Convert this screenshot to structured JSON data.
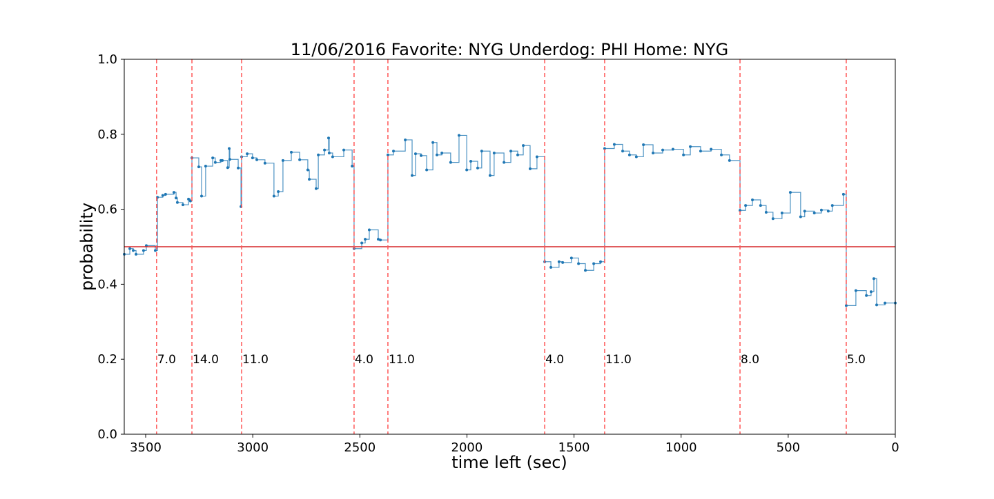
{
  "chart_data": {
    "type": "step",
    "title": "11/06/2016 Favorite: NYG Underdog: PHI Home: NYG",
    "xlabel": "time left (sec)",
    "ylabel": "probability",
    "xlim": [
      3600,
      0
    ],
    "ylim": [
      0,
      1
    ],
    "xticks": [
      3500,
      3000,
      2500,
      2000,
      1500,
      1000,
      500,
      0
    ],
    "yticks": [
      {
        "value": 0,
        "label": "0.0"
      },
      0.2,
      0.4,
      0.6,
      0.8,
      {
        "value": 1,
        "label": "1.0"
      }
    ],
    "hline": {
      "value": 0.5,
      "color": "#d62728"
    },
    "vlines": {
      "color": "#ff5555",
      "lines": [
        {
          "x": 3449,
          "text": "7.0"
        },
        {
          "x": 3284,
          "text": "14.0"
        },
        {
          "x": 3052,
          "text": "11.0"
        },
        {
          "x": 2527,
          "text": "4.0"
        },
        {
          "x": 2369,
          "text": "11.0"
        },
        {
          "x": 1637,
          "text": "4.0"
        },
        {
          "x": 1357,
          "text": "11.0"
        },
        {
          "x": 725,
          "text": "8.0"
        },
        {
          "x": 229,
          "text": "5.0"
        }
      ],
      "label_y": 0.2
    },
    "series": [
      {
        "color": "#1f77b4",
        "x": [
          3600,
          3574,
          3558,
          3545,
          3510,
          3497,
          3455,
          3445,
          3420,
          3407,
          3368,
          3358,
          3352,
          3326,
          3300,
          3291,
          3284,
          3252,
          3239,
          3220,
          3187,
          3175,
          3149,
          3142,
          3117,
          3110,
          3107,
          3068,
          3055,
          3052,
          3026,
          3001,
          2981,
          2943,
          2901,
          2881,
          2859,
          2820,
          2781,
          2743,
          2736,
          2704,
          2694,
          2665,
          2646,
          2643,
          2627,
          2575,
          2536,
          2527,
          2491,
          2475,
          2456,
          2414,
          2404,
          2369,
          2343,
          2288,
          2256,
          2240,
          2214,
          2188,
          2159,
          2140,
          2117,
          2076,
          2037,
          2001,
          1982,
          1950,
          1931,
          1892,
          1873,
          1827,
          1795,
          1763,
          1737,
          1705,
          1673,
          1637,
          1608,
          1570,
          1553,
          1512,
          1479,
          1447,
          1408,
          1376,
          1357,
          1312,
          1273,
          1241,
          1209,
          1176,
          1131,
          1086,
          1038,
          989,
          957,
          909,
          860,
          812,
          774,
          725,
          699,
          667,
          629,
          603,
          571,
          529,
          490,
          442,
          423,
          378,
          345,
          313,
          294,
          242,
          229,
          184,
          135,
          113,
          100,
          87,
          48,
          0
        ],
        "values": [
          0.48,
          0.495,
          0.49,
          0.48,
          0.49,
          0.503,
          0.49,
          0.632,
          0.637,
          0.64,
          0.645,
          0.63,
          0.618,
          0.612,
          0.627,
          0.622,
          0.737,
          0.713,
          0.635,
          0.715,
          0.737,
          0.725,
          0.73,
          0.73,
          0.711,
          0.762,
          0.733,
          0.71,
          0.607,
          0.74,
          0.748,
          0.737,
          0.732,
          0.723,
          0.635,
          0.647,
          0.73,
          0.752,
          0.732,
          0.705,
          0.68,
          0.655,
          0.745,
          0.758,
          0.79,
          0.75,
          0.74,
          0.758,
          0.715,
          0.495,
          0.51,
          0.52,
          0.545,
          0.52,
          0.518,
          0.745,
          0.755,
          0.785,
          0.69,
          0.748,
          0.743,
          0.705,
          0.778,
          0.745,
          0.75,
          0.725,
          0.797,
          0.705,
          0.728,
          0.71,
          0.755,
          0.69,
          0.75,
          0.725,
          0.755,
          0.745,
          0.77,
          0.708,
          0.74,
          0.46,
          0.445,
          0.46,
          0.458,
          0.47,
          0.455,
          0.437,
          0.455,
          0.46,
          0.762,
          0.773,
          0.755,
          0.745,
          0.74,
          0.772,
          0.75,
          0.758,
          0.76,
          0.745,
          0.767,
          0.755,
          0.76,
          0.745,
          0.73,
          0.597,
          0.61,
          0.625,
          0.61,
          0.592,
          0.575,
          0.59,
          0.645,
          0.58,
          0.595,
          0.59,
          0.598,
          0.595,
          0.61,
          0.64,
          0.343,
          0.383,
          0.37,
          0.38,
          0.415,
          0.345,
          0.35,
          0.35
        ]
      }
    ]
  }
}
